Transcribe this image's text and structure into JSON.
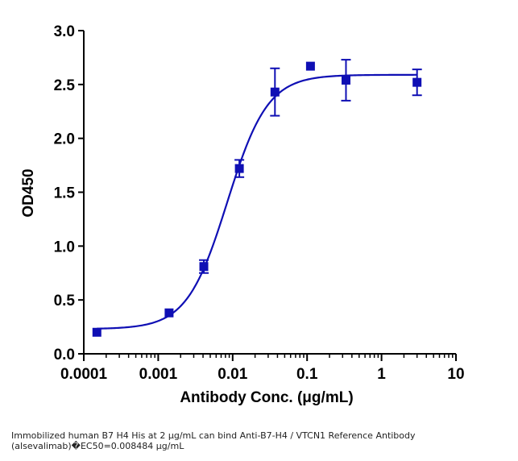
{
  "chart_data": {
    "type": "scatter",
    "x_scale": "log",
    "xlabel": "Antibody Conc. (μg/mL)",
    "ylabel": "OD450",
    "xlim": [
      0.0001,
      10
    ],
    "ylim": [
      0,
      3.0
    ],
    "x_tick_labels": [
      "0.0001",
      "0.001",
      "0.01",
      "0.1",
      "1",
      "10"
    ],
    "y_tick_labels": [
      "0.0",
      "0.5",
      "1.0",
      "1.5",
      "2.0",
      "2.5",
      "3.0"
    ],
    "color": "#0f0fb4",
    "points": [
      {
        "x": 0.00015,
        "y": 0.2,
        "err": 0.0
      },
      {
        "x": 0.0014,
        "y": 0.38,
        "err": 0.0
      },
      {
        "x": 0.0041,
        "y": 0.81,
        "err": 0.06
      },
      {
        "x": 0.0123,
        "y": 1.72,
        "err": 0.08
      },
      {
        "x": 0.037,
        "y": 2.43,
        "err": 0.22
      },
      {
        "x": 0.111,
        "y": 2.67,
        "err": 0.0
      },
      {
        "x": 0.333,
        "y": 2.54,
        "err": 0.19
      },
      {
        "x": 3.0,
        "y": 2.52,
        "err": 0.12
      }
    ],
    "fit": {
      "model": "4PL",
      "bottom": 0.23,
      "top": 2.59,
      "ec50": 0.008484,
      "hill": 1.6
    }
  },
  "caption": {
    "line1": "Immobilized human B7 H4 His at 2  μg/mL can bind  Anti-B7-H4 / VTCN1 Reference Antibody",
    "line2": "(alsevalimab)�EC50=0.008484 μg/mL"
  }
}
